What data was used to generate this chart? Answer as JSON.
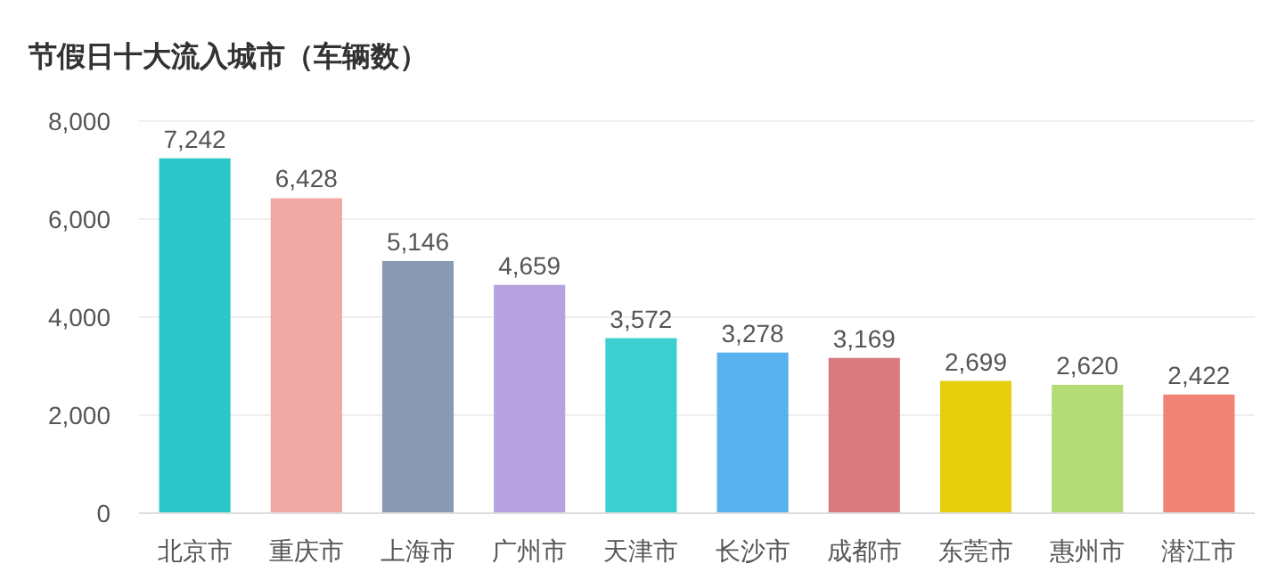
{
  "chart_data": {
    "type": "bar",
    "title": "节假日十大流入城市（车辆数）",
    "categories": [
      "北京市",
      "重庆市",
      "上海市",
      "广州市",
      "天津市",
      "长沙市",
      "成都市",
      "东莞市",
      "惠州市",
      "潜江市"
    ],
    "values": [
      7242,
      6428,
      5146,
      4659,
      3572,
      3278,
      3169,
      2699,
      2620,
      2422
    ],
    "colors": [
      "#2ec7c9",
      "#f0a8a6",
      "#8b98b3",
      "#b6a2de",
      "#3ccfcf",
      "#5ab1ef",
      "#d87a80",
      "#e5cf0d",
      "#b5db77",
      "#ef8375"
    ],
    "value_labels": [
      "7,242",
      "6,428",
      "5,146",
      "4,659",
      "3,572",
      "3,278",
      "3,169",
      "2,699",
      "2,620",
      "2,422"
    ],
    "ylim": [
      0,
      8000
    ],
    "yticks": [
      0,
      {
        "value": 2000,
        "label": "2,000"
      },
      {
        "value": 4000,
        "label": "4,000"
      },
      {
        "value": 6000,
        "label": "6,000"
      },
      {
        "value": 8000,
        "label": "8,000"
      }
    ],
    "grid": "y"
  }
}
